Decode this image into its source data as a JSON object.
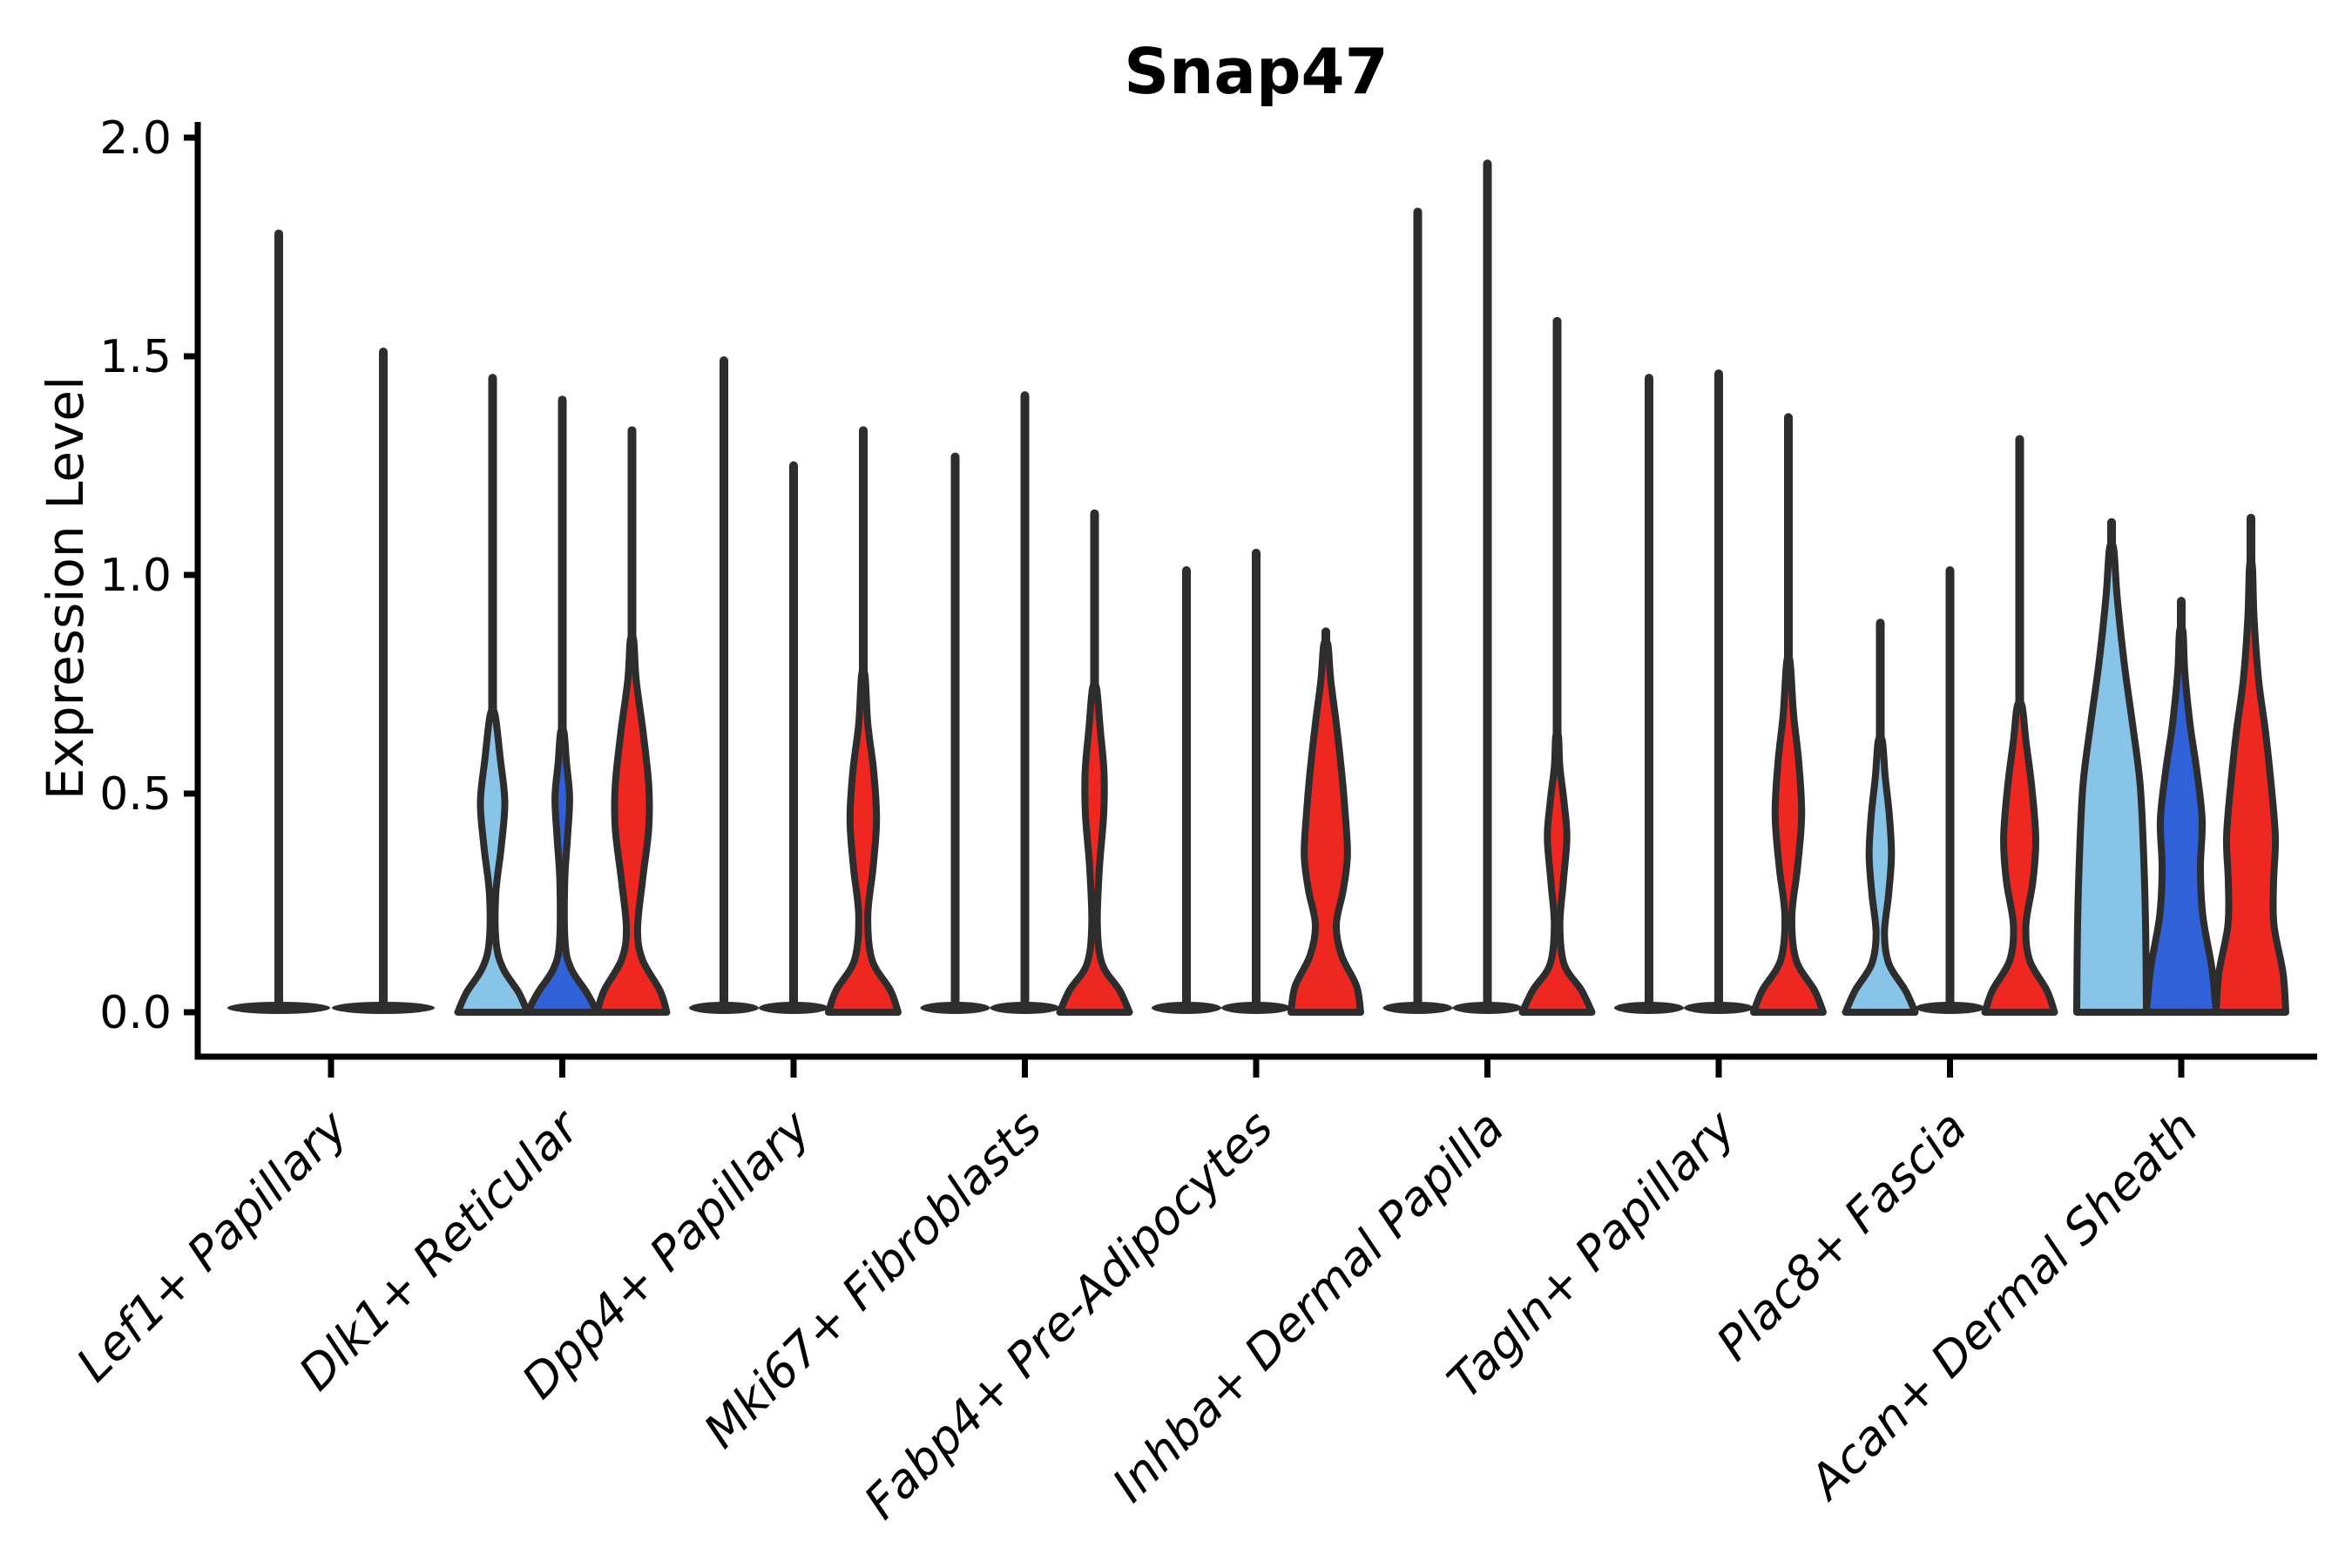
{
  "chart_data": {
    "type": "violin",
    "title": "Snap47",
    "xlabel": "",
    "ylabel": "Expression Level",
    "ylim": [
      0,
      2.05
    ],
    "grid": "off",
    "legend_position": "none",
    "ytick_values": [
      0.0,
      0.5,
      1.0,
      1.5,
      2.0
    ],
    "ytick_labels": [
      "0.0",
      "0.5",
      "1.0",
      "1.5",
      "2.0"
    ],
    "categories": [
      "Lef1+ Papillary",
      "Dlk1+ Reticular",
      "Dpp4+ Papillary",
      "Mki67+ Fibroblasts",
      "Fabp4+ Pre-Adipocytes",
      "Inhba+ Dermal Papilla",
      "Tagln+ Papillary",
      "Plac8+ Fascia",
      "Acan+ Dermal Sheath"
    ],
    "palette": {
      "light_blue": "#87C4E8",
      "dark_blue": "#3061D8",
      "red": "#EE2820",
      "outline": "#2D2D2D"
    },
    "groups": [
      {
        "category": "Lef1+ Papillary",
        "violins": [
          {
            "offset": -60,
            "color": null,
            "max": 1.78,
            "profile": "flat"
          },
          {
            "offset": 60,
            "color": null,
            "max": 1.51,
            "profile": "flat"
          }
        ]
      },
      {
        "category": "Dlk1+ Reticular",
        "violins": [
          {
            "offset": -80,
            "color": "#87C4E8",
            "max": 1.45,
            "profile": [
              [
                0,
                1
              ],
              [
                0.045,
                0.75
              ],
              [
                0.1,
                0.3
              ],
              [
                0.16,
                0.1
              ],
              [
                0.27,
                0.09
              ],
              [
                0.38,
                0.25
              ],
              [
                0.48,
                0.35
              ],
              [
                0.58,
                0.22
              ],
              [
                0.68,
                0.07
              ]
            ]
          },
          {
            "offset": 0,
            "color": "#3061D8",
            "max": 1.4,
            "profile": [
              [
                0,
                1
              ],
              [
                0.045,
                0.7
              ],
              [
                0.1,
                0.25
              ],
              [
                0.16,
                0.08
              ],
              [
                0.3,
                0.07
              ],
              [
                0.4,
                0.15
              ],
              [
                0.49,
                0.21
              ],
              [
                0.57,
                0.12
              ],
              [
                0.64,
                0.05
              ]
            ]
          },
          {
            "offset": 80,
            "color": "#EE2820",
            "max": 1.33,
            "profile": [
              [
                0,
                1
              ],
              [
                0.05,
                0.8
              ],
              [
                0.12,
                0.3
              ],
              [
                0.19,
                0.16
              ],
              [
                0.3,
                0.3
              ],
              [
                0.42,
                0.48
              ],
              [
                0.52,
                0.48
              ],
              [
                0.64,
                0.32
              ],
              [
                0.76,
                0.12
              ],
              [
                0.85,
                0.05
              ]
            ]
          }
        ]
      },
      {
        "category": "Dpp4+ Papillary",
        "violins": [
          {
            "offset": -80,
            "color": null,
            "max": 1.49,
            "profile": "flat"
          },
          {
            "offset": 0,
            "color": null,
            "max": 1.25,
            "profile": "flat"
          },
          {
            "offset": 80,
            "color": "#EE2820",
            "max": 1.33,
            "profile": [
              [
                0,
                1
              ],
              [
                0.05,
                0.78
              ],
              [
                0.12,
                0.25
              ],
              [
                0.22,
                0.13
              ],
              [
                0.33,
                0.28
              ],
              [
                0.44,
                0.38
              ],
              [
                0.55,
                0.3
              ],
              [
                0.66,
                0.13
              ],
              [
                0.77,
                0.05
              ]
            ]
          }
        ]
      },
      {
        "category": "Mki67+ Fibroblasts",
        "violins": [
          {
            "offset": -80,
            "color": null,
            "max": 1.27,
            "profile": "flat"
          },
          {
            "offset": 0,
            "color": null,
            "max": 1.41,
            "profile": "flat"
          },
          {
            "offset": 80,
            "color": "#EE2820",
            "max": 1.14,
            "profile": [
              [
                0,
                1
              ],
              [
                0.05,
                0.72
              ],
              [
                0.11,
                0.22
              ],
              [
                0.2,
                0.08
              ],
              [
                0.33,
                0.14
              ],
              [
                0.45,
                0.26
              ],
              [
                0.55,
                0.27
              ],
              [
                0.65,
                0.16
              ],
              [
                0.74,
                0.06
              ]
            ]
          }
        ]
      },
      {
        "category": "Fabp4+ Pre-Adipocytes",
        "violins": [
          {
            "offset": -80,
            "color": null,
            "max": 1.01,
            "profile": "flat"
          },
          {
            "offset": 0,
            "color": null,
            "max": 1.05,
            "profile": "flat"
          },
          {
            "offset": 80,
            "color": "#EE2820",
            "max": 0.87,
            "profile": [
              [
                0,
                1
              ],
              [
                0.06,
                0.88
              ],
              [
                0.13,
                0.45
              ],
              [
                0.2,
                0.3
              ],
              [
                0.28,
                0.5
              ],
              [
                0.36,
                0.62
              ],
              [
                0.46,
                0.55
              ],
              [
                0.56,
                0.44
              ],
              [
                0.66,
                0.3
              ],
              [
                0.76,
                0.14
              ],
              [
                0.84,
                0.06
              ]
            ]
          }
        ]
      },
      {
        "category": "Inhba+ Dermal Papilla",
        "violins": [
          {
            "offset": -80,
            "color": null,
            "max": 1.83,
            "profile": "flat"
          },
          {
            "offset": 0,
            "color": null,
            "max": 1.94,
            "profile": "flat"
          },
          {
            "offset": 80,
            "color": "#EE2820",
            "max": 1.58,
            "profile": [
              [
                0,
                1
              ],
              [
                0.05,
                0.7
              ],
              [
                0.11,
                0.2
              ],
              [
                0.2,
                0.08
              ],
              [
                0.3,
                0.18
              ],
              [
                0.4,
                0.28
              ],
              [
                0.48,
                0.2
              ],
              [
                0.56,
                0.08
              ],
              [
                0.63,
                0.04
              ]
            ]
          }
        ]
      },
      {
        "category": "Tagln+ Papillary",
        "violins": [
          {
            "offset": -80,
            "color": null,
            "max": 1.45,
            "profile": "flat"
          },
          {
            "offset": 0,
            "color": null,
            "max": 1.46,
            "profile": "flat"
          },
          {
            "offset": 80,
            "color": "#EE2820",
            "max": 1.36,
            "profile": [
              [
                0,
                1
              ],
              [
                0.05,
                0.75
              ],
              [
                0.12,
                0.22
              ],
              [
                0.22,
                0.1
              ],
              [
                0.33,
                0.26
              ],
              [
                0.45,
                0.38
              ],
              [
                0.57,
                0.3
              ],
              [
                0.68,
                0.15
              ],
              [
                0.8,
                0.05
              ]
            ]
          }
        ]
      },
      {
        "category": "Plac8+ Fascia",
        "violins": [
          {
            "offset": -80,
            "color": "#87C4E8",
            "max": 0.89,
            "profile": [
              [
                0,
                1
              ],
              [
                0.05,
                0.72
              ],
              [
                0.11,
                0.25
              ],
              [
                0.18,
                0.12
              ],
              [
                0.27,
                0.24
              ],
              [
                0.36,
                0.32
              ],
              [
                0.45,
                0.26
              ],
              [
                0.54,
                0.14
              ],
              [
                0.62,
                0.06
              ]
            ]
          },
          {
            "offset": 0,
            "color": null,
            "max": 1.01,
            "profile": "flat"
          },
          {
            "offset": 80,
            "color": "#EE2820",
            "max": 1.31,
            "profile": [
              [
                0,
                1
              ],
              [
                0.05,
                0.78
              ],
              [
                0.12,
                0.28
              ],
              [
                0.2,
                0.18
              ],
              [
                0.3,
                0.38
              ],
              [
                0.4,
                0.46
              ],
              [
                0.52,
                0.34
              ],
              [
                0.62,
                0.18
              ],
              [
                0.7,
                0.07
              ]
            ]
          }
        ]
      },
      {
        "category": "Acan+ Dermal Sheath",
        "violins": [
          {
            "offset": -80,
            "color": "#87C4E8",
            "max": 1.12,
            "profile": [
              [
                0,
                1
              ],
              [
                0.18,
                0.98
              ],
              [
                0.36,
                0.92
              ],
              [
                0.52,
                0.82
              ],
              [
                0.66,
                0.6
              ],
              [
                0.8,
                0.36
              ],
              [
                0.95,
                0.16
              ],
              [
                1.06,
                0.06
              ]
            ]
          },
          {
            "offset": 0,
            "color": "#3061D8",
            "max": 0.94,
            "profile": [
              [
                0,
                1
              ],
              [
                0.1,
                0.88
              ],
              [
                0.22,
                0.62
              ],
              [
                0.33,
                0.55
              ],
              [
                0.44,
                0.6
              ],
              [
                0.55,
                0.45
              ],
              [
                0.66,
                0.25
              ],
              [
                0.78,
                0.1
              ],
              [
                0.87,
                0.05
              ]
            ]
          },
          {
            "offset": 80,
            "color": "#EE2820",
            "max": 1.13,
            "profile": [
              [
                0,
                1
              ],
              [
                0.09,
                0.92
              ],
              [
                0.2,
                0.66
              ],
              [
                0.3,
                0.65
              ],
              [
                0.4,
                0.7
              ],
              [
                0.52,
                0.58
              ],
              [
                0.64,
                0.42
              ],
              [
                0.76,
                0.22
              ],
              [
                0.9,
                0.09
              ],
              [
                1.02,
                0.04
              ]
            ]
          }
        ]
      }
    ]
  }
}
